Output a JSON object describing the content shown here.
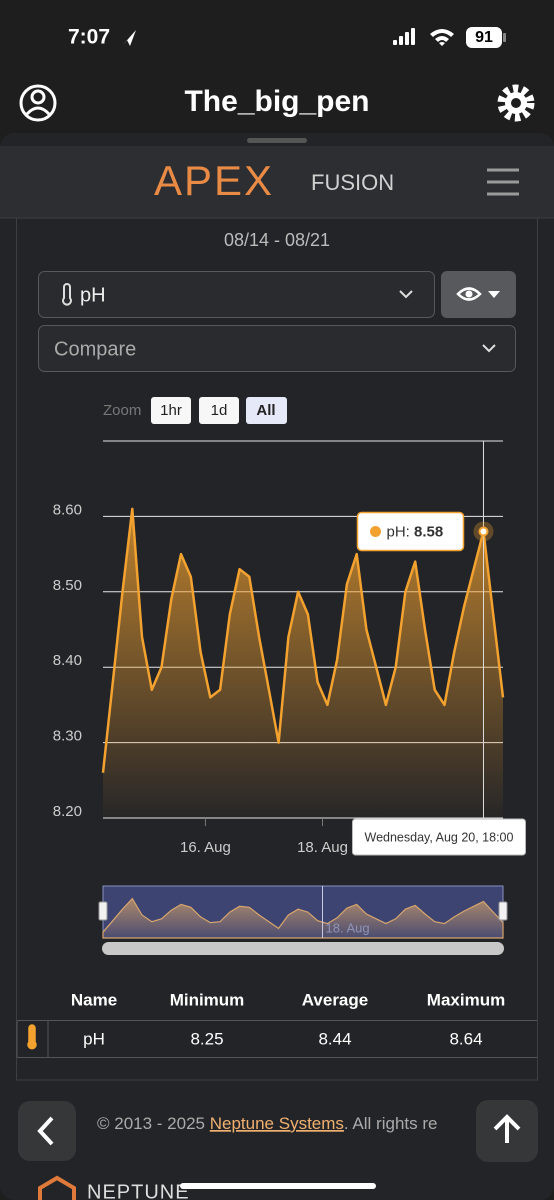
{
  "status_bar": {
    "time": "7:07",
    "battery": "91"
  },
  "header": {
    "title": "The_big_pen"
  },
  "brand": {
    "apex": "APEX",
    "fusion": "FUSION"
  },
  "date_range": "08/14 - 08/21",
  "selectors": {
    "probe": "pH",
    "compare": "Compare"
  },
  "zoom": {
    "label": "Zoom",
    "buttons": [
      "1hr",
      "1d",
      "All"
    ]
  },
  "chart_data": {
    "type": "area",
    "color": "#f3a230",
    "x": [
      "Aug 14, 06:00",
      "Aug 14, 10:00",
      "Aug 14, 14:00",
      "Aug 14, 18:00",
      "Aug 14, 22:00",
      "Aug 15, 02:00",
      "Aug 15, 06:00",
      "Aug 15, 10:00",
      "Aug 15, 14:00",
      "Aug 15, 18:00",
      "Aug 15, 22:00",
      "Aug 16, 02:00",
      "Aug 16, 06:00",
      "Aug 16, 10:00",
      "Aug 16, 14:00",
      "Aug 16, 18:00",
      "Aug 16, 22:00",
      "Aug 17, 02:00",
      "Aug 17, 06:00",
      "Aug 17, 10:00",
      "Aug 17, 14:00",
      "Aug 17, 18:00",
      "Aug 17, 22:00",
      "Aug 18, 02:00",
      "Aug 18, 06:00",
      "Aug 18, 10:00",
      "Aug 18, 14:00",
      "Aug 18, 18:00",
      "Aug 18, 22:00",
      "Aug 19, 02:00",
      "Aug 19, 06:00",
      "Aug 19, 10:00",
      "Aug 19, 14:00",
      "Aug 19, 18:00",
      "Aug 19, 22:00",
      "Aug 20, 02:00",
      "Aug 20, 06:00",
      "Aug 20, 10:00",
      "Aug 20, 14:00",
      "Aug 20, 18:00",
      "Aug 20, 22:00",
      "Aug 21, 02:00"
    ],
    "values": [
      8.26,
      8.38,
      8.5,
      8.61,
      8.44,
      8.37,
      8.4,
      8.49,
      8.55,
      8.52,
      8.42,
      8.36,
      8.37,
      8.47,
      8.53,
      8.52,
      8.44,
      8.37,
      8.3,
      8.44,
      8.5,
      8.47,
      8.38,
      8.35,
      8.41,
      8.51,
      8.55,
      8.45,
      8.4,
      8.35,
      8.4,
      8.5,
      8.54,
      8.45,
      8.37,
      8.35,
      8.42,
      8.48,
      8.53,
      8.58,
      8.47,
      8.36
    ],
    "xlim": [
      "Aug 14, 06:00",
      "Aug 21, 02:00"
    ],
    "xticks": [
      {
        "value": "Aug 16, 00:00",
        "label": "16. Aug"
      },
      {
        "value": "Aug 18, 00:00",
        "label": "18. Aug"
      }
    ],
    "ylim": [
      8.2,
      8.7
    ],
    "yticks": [
      {
        "value": 8.2,
        "label": "8.20"
      },
      {
        "value": 8.3,
        "label": "8.30"
      },
      {
        "value": 8.4,
        "label": "8.40"
      },
      {
        "value": 8.5,
        "label": "8.50"
      },
      {
        "value": 8.6,
        "label": "8.60"
      }
    ],
    "grid": true,
    "tooltip": {
      "label": "pH:",
      "value": 8.58,
      "x": "Wednesday, Aug 20, 18:00"
    },
    "navigator": {
      "label": "18. Aug"
    }
  },
  "stats_table": {
    "columns": [
      "Name",
      "Minimum",
      "Average",
      "Maximum"
    ],
    "rows": [
      [
        "pH",
        8.25,
        8.44,
        8.64
      ]
    ]
  },
  "footer": {
    "copyright": "© 2013 - 2025",
    "link": "Neptune Systems",
    "rest": ". All rights re",
    "brand": "NEPTUNE"
  }
}
